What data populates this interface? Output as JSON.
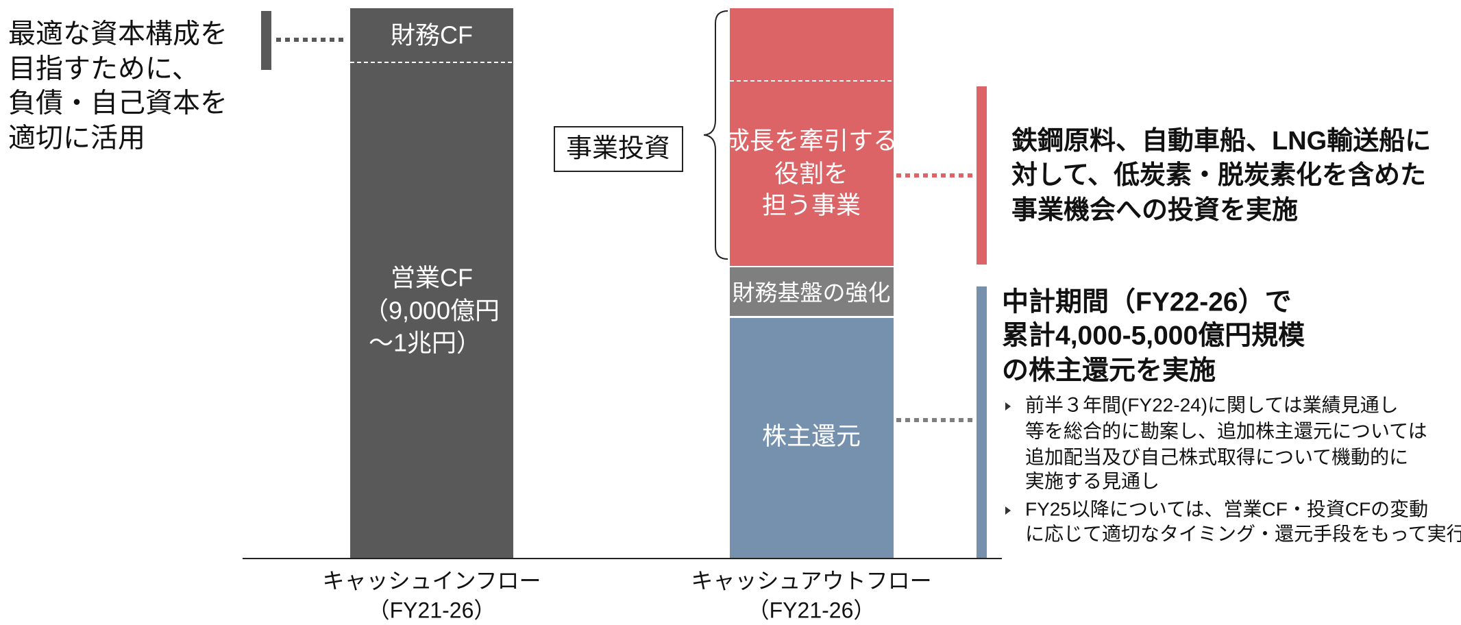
{
  "left_note": {
    "lines": [
      "最適な資本構成を",
      "目指すために、",
      "負債・自己資本を",
      "適切に活用"
    ]
  },
  "inflow": {
    "financing_cf": "財務CF",
    "operating_cf": [
      "営業CF",
      "（9,000億円",
      "～1兆円）"
    ],
    "label": [
      "キャッシュインフロー",
      "（FY21-26）"
    ]
  },
  "outflow": {
    "growth": [
      "成長を牽引する",
      "役割を",
      "担う事業"
    ],
    "financial_base": "財務基盤の強化",
    "shareholder_return": "株主還元",
    "label": [
      "キャッシュアウトフロー",
      "（FY21-26）"
    ]
  },
  "business_investment": "事業投資",
  "investment_note": [
    "鉄鋼原料、自動車船、LNG輸送船に",
    "対して、低炭素・脱炭素化を含めた",
    "事業機会への投資を実施"
  ],
  "return_note": {
    "headline": [
      "中計期間（FY22-26）で",
      "累計4,000-5,000億円規模",
      "の株主還元を実施"
    ],
    "bullets": [
      [
        "前半３年間(FY22-24)に関しては業績見通し",
        "等を総合的に勘案し、追加株主還元については",
        "追加配当及び自己株式取得について機動的に",
        "実施する見通し"
      ],
      [
        "FY25以降については、営業CF・投資CFの変動",
        "に応じて適切なタイミング・還元手段をもって実行"
      ]
    ]
  }
}
